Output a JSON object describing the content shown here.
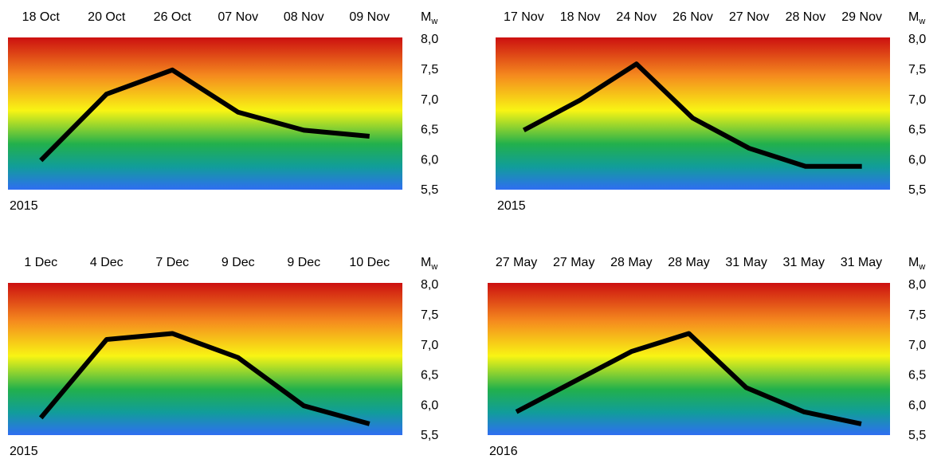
{
  "chart_data": [
    {
      "type": "line",
      "categories": [
        "18 Oct",
        "20 Oct",
        "26 Oct",
        "07 Nov",
        "08 Nov",
        "09 Nov"
      ],
      "values": [
        6.0,
        7.1,
        7.5,
        6.8,
        6.5,
        6.4
      ],
      "color": "#000000",
      "ylim": [
        5.5,
        8.0
      ],
      "yticks": [
        {
          "value": 8.0,
          "label": "8,0"
        },
        {
          "value": 7.5,
          "label": "7,5"
        },
        {
          "value": 7.0,
          "label": "7,0"
        },
        {
          "value": 6.5,
          "label": "6,5"
        },
        {
          "value": 6.0,
          "label": "6,0"
        },
        {
          "value": 5.5,
          "label": "5,5"
        }
      ],
      "ylabel": "M",
      "ylabel_sub": "w",
      "year": "2015"
    },
    {
      "type": "line",
      "categories": [
        "17 Nov",
        "18 Nov",
        "24 Nov",
        "26 Nov",
        "27 Nov",
        "28 Nov",
        "29 Nov"
      ],
      "values": [
        6.5,
        7.0,
        7.6,
        6.7,
        6.2,
        5.9,
        5.9
      ],
      "color": "#000000",
      "ylim": [
        5.5,
        8.0
      ],
      "yticks": [
        {
          "value": 8.0,
          "label": "8,0"
        },
        {
          "value": 7.5,
          "label": "7,5"
        },
        {
          "value": 7.0,
          "label": "7,0"
        },
        {
          "value": 6.5,
          "label": "6,5"
        },
        {
          "value": 6.0,
          "label": "6,0"
        },
        {
          "value": 5.5,
          "label": "5,5"
        }
      ],
      "ylabel": "M",
      "ylabel_sub": "w",
      "year": "2015"
    },
    {
      "type": "line",
      "categories": [
        "1 Dec",
        "4 Dec",
        "7 Dec",
        "9 Dec",
        "9 Dec",
        "10 Dec"
      ],
      "values": [
        5.8,
        7.1,
        7.2,
        6.8,
        6.0,
        5.7
      ],
      "color": "#000000",
      "ylim": [
        5.5,
        8.0
      ],
      "yticks": [
        {
          "value": 8.0,
          "label": "8,0"
        },
        {
          "value": 7.5,
          "label": "7,5"
        },
        {
          "value": 7.0,
          "label": "7,0"
        },
        {
          "value": 6.5,
          "label": "6,5"
        },
        {
          "value": 6.0,
          "label": "6,0"
        },
        {
          "value": 5.5,
          "label": "5,5"
        }
      ],
      "ylabel": "M",
      "ylabel_sub": "w",
      "year": "2015"
    },
    {
      "type": "line",
      "categories": [
        "27 May",
        "27 May",
        "28 May",
        "28 May",
        "31 May",
        "31 May",
        "31 May"
      ],
      "values": [
        5.9,
        6.4,
        6.9,
        7.2,
        6.3,
        5.9,
        5.7
      ],
      "color": "#000000",
      "ylim": [
        5.5,
        8.0
      ],
      "yticks": [
        {
          "value": 8.0,
          "label": "8,0"
        },
        {
          "value": 7.5,
          "label": "7,5"
        },
        {
          "value": 7.0,
          "label": "7,0"
        },
        {
          "value": 6.5,
          "label": "6,5"
        },
        {
          "value": 6.0,
          "label": "6,0"
        },
        {
          "value": 5.5,
          "label": "5,5"
        }
      ],
      "ylabel": "M",
      "ylabel_sub": "w",
      "year": "2016"
    }
  ]
}
